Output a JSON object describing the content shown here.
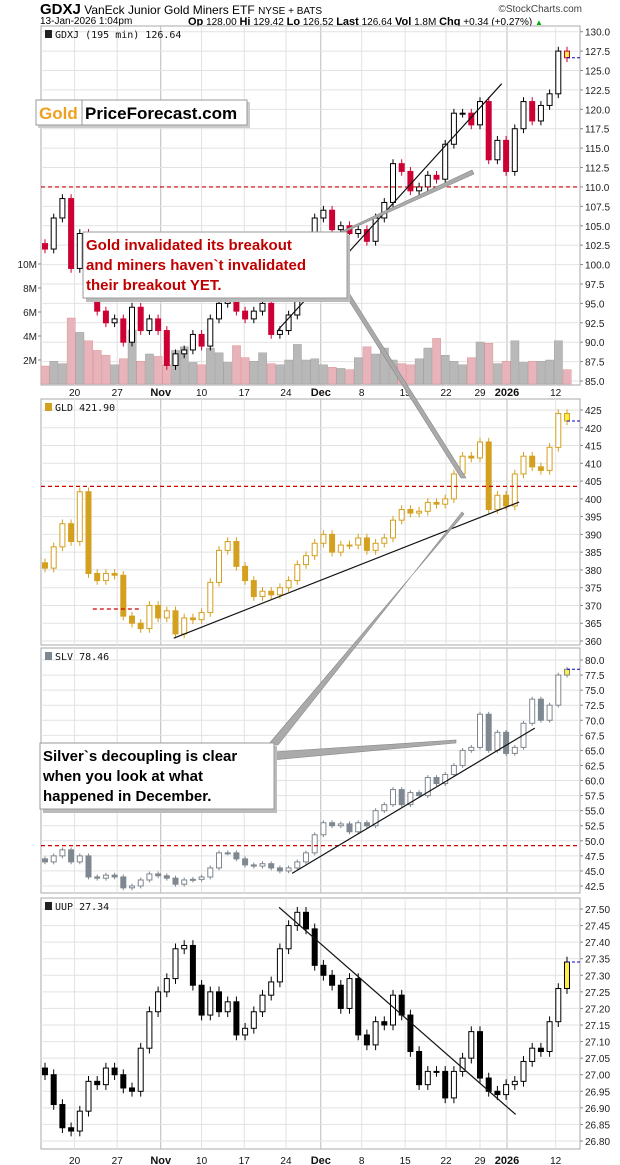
{
  "header": {
    "symbol": "GDXJ",
    "name": "VanEck Junior Gold Miners ETF",
    "exchange": "NYSE + BATS",
    "credit": "©StockCharts.com",
    "datetime": "13-Jan-2026 1:04pm",
    "op_label": "Op",
    "op": "128.00",
    "hi_label": "Hi",
    "hi": "129.42",
    "lo_label": "Lo",
    "lo": "126.52",
    "last_label": "Last",
    "last": "126.64",
    "vol_label": "Vol",
    "vol": "1.8M",
    "chg_label": "Chg",
    "chg": "+0.34 (+0.27%)",
    "chg_arrow": "▲"
  },
  "logo": {
    "gold": "Gold",
    "site": "PriceForecast.com"
  },
  "annotations": {
    "gold_note": [
      "Gold invalidated its breakout",
      "and miners haven`t invalidated",
      "their breakout YET."
    ],
    "silver_note": [
      "Silver`s decoupling is clear",
      "when you look at what",
      "happened in December."
    ]
  },
  "colors": {
    "up_down_red": "#cc0033",
    "gold": "#d4a020",
    "silver": "#7f8890",
    "dollar": "#000000",
    "level": "#cc0000",
    "last_marker": "#0000cc"
  },
  "chart_data": {
    "type": "candlestick",
    "x_labels": [
      {
        "text": "20",
        "bar": 3.4
      },
      {
        "text": "27",
        "bar": 8.3
      },
      {
        "text": "Nov",
        "bar": 13.3,
        "bold": true
      },
      {
        "text": "10",
        "bar": 18
      },
      {
        "text": "17",
        "bar": 22.9
      },
      {
        "text": "24",
        "bar": 27.7
      },
      {
        "text": "Dec",
        "bar": 31.7,
        "bold": true
      },
      {
        "text": "8",
        "bar": 36.4
      },
      {
        "text": "15",
        "bar": 41.4
      },
      {
        "text": "22",
        "bar": 46.1
      },
      {
        "text": "29",
        "bar": 50
      },
      {
        "text": "2026",
        "bar": 53.1,
        "bold": true
      },
      {
        "text": "12",
        "bar": 58.7
      }
    ],
    "panels": [
      {
        "id": "gdxj",
        "label": "GDXJ (195 min) 126.64",
        "color": "#cc0033",
        "up_color": "#000000",
        "ylim": [
          85,
          130
        ],
        "yticks": [
          "130.0",
          "127.5",
          "125.0",
          "122.5",
          "120.0",
          "117.5",
          "115.0",
          "112.5",
          "110.0",
          "107.5",
          "105.0",
          "102.5",
          "100.0",
          "97.5",
          "95.0",
          "92.5",
          "90.0",
          "87.5",
          "85.0"
        ],
        "closes": [
          102,
          106,
          108.5,
          99.5,
          104,
          96,
          94,
          92.5,
          93,
          90,
          94.5,
          91.5,
          93,
          91.5,
          87,
          88.5,
          89,
          91,
          89.5,
          93,
          95,
          97,
          94,
          93,
          94,
          95,
          91,
          91.5,
          93.5,
          97,
          102.5,
          106,
          107,
          104.5,
          105,
          104,
          104.5,
          103,
          106,
          108,
          113,
          112,
          109.5,
          110,
          111.5,
          111,
          115.5,
          119.5,
          119.5,
          118,
          121,
          113.5,
          116,
          112,
          117.5,
          121,
          118.5,
          120.5,
          122,
          127.5,
          126.64
        ],
        "volume_m": [
          1.5,
          1.9,
          1.7,
          5.5,
          4.3,
          3.6,
          2.8,
          2.4,
          1.6,
          2.1,
          4.5,
          1.9,
          2.5,
          2.3,
          1.6,
          2.8,
          3.1,
          1.8,
          1.6,
          3.0,
          2.6,
          1.8,
          3.2,
          2.2,
          1.9,
          2.6,
          1.7,
          1.6,
          2.0,
          3.3,
          2.0,
          2.1,
          1.6,
          1.4,
          1.3,
          1.2,
          2.2,
          3.1,
          2.5,
          3.0,
          2.0,
          1.7,
          1.6,
          2.1,
          3.0,
          3.8,
          2.4,
          1.9,
          1.6,
          2.2,
          3.5,
          3.4,
          1.7,
          1.9,
          3.6,
          1.8,
          1.9,
          1.9,
          2.0,
          3.6,
          1.2
        ],
        "volume_ticks": [
          "2M",
          "4M",
          "6M",
          "8M",
          "10M"
        ],
        "levels": [
          {
            "value": 110,
            "style": "red-dashed"
          }
        ],
        "trendlines": [
          {
            "from": [
              26.8,
              91.6
            ],
            "to": [
              52.5,
              123.3
            ]
          }
        ]
      },
      {
        "id": "gld",
        "label": "GLD 421.90",
        "color": "#d4a020",
        "up_color": "#d4a020",
        "ylim": [
          360,
          425
        ],
        "yticks": [
          "425",
          "420",
          "415",
          "410",
          "405",
          "400",
          "395",
          "390",
          "385",
          "380",
          "375",
          "370",
          "365",
          "360"
        ],
        "closes": [
          380.5,
          386.5,
          393,
          388,
          402,
          379,
          377,
          379,
          378.5,
          367,
          365,
          363.5,
          370,
          366.5,
          368.5,
          362,
          366.5,
          366,
          368,
          376.5,
          385.5,
          388,
          381,
          377,
          372.5,
          374,
          373,
          375,
          377,
          381.5,
          384,
          387.5,
          390,
          385,
          387,
          387,
          389,
          385.5,
          387.5,
          389,
          394,
          397,
          396,
          396.5,
          399,
          398.5,
          400,
          407,
          412,
          411.5,
          416,
          397,
          401,
          398,
          407,
          412,
          409,
          408,
          414.5,
          424,
          421.9
        ],
        "levels": [
          {
            "value": 403.5,
            "style": "red-dashed"
          },
          {
            "value": 369,
            "style": "red-dashed",
            "from_bar": 5.5,
            "to_bar": 11
          }
        ],
        "trendlines": [
          {
            "from": [
              14.8,
              360.8
            ],
            "to": [
              54.5,
              399.1
            ]
          }
        ]
      },
      {
        "id": "slv",
        "label": "SLV 78.46",
        "color": "#7f8890",
        "up_color": "#7f8890",
        "ylim": [
          42.5,
          80
        ],
        "yticks": [
          "80.0",
          "77.5",
          "75.0",
          "72.5",
          "70.0",
          "67.5",
          "65.0",
          "62.5",
          "60.0",
          "57.5",
          "55.0",
          "52.5",
          "50.0",
          "47.5",
          "45.0",
          "42.5"
        ],
        "closes": [
          46.5,
          47.5,
          48.5,
          46.5,
          47.5,
          44,
          43.8,
          44.3,
          44,
          42.2,
          42.5,
          43.5,
          44.5,
          44.2,
          43.8,
          42.8,
          43.5,
          43.6,
          44,
          45.5,
          48,
          48,
          47,
          46,
          45.8,
          46.2,
          45.5,
          45,
          45.5,
          46.5,
          48,
          51,
          53,
          52.5,
          52.8,
          51.5,
          53,
          52.5,
          55,
          56,
          58.5,
          56,
          58,
          57.5,
          60.5,
          59.5,
          61,
          62.5,
          65,
          65.5,
          71,
          65,
          68,
          64.5,
          65.5,
          69.5,
          73.5,
          70,
          72.5,
          77.5,
          78.46
        ],
        "levels": [
          {
            "value": 49.2,
            "style": "red-dashed"
          }
        ],
        "trendlines": [
          {
            "from": [
              28.4,
              44.6
            ],
            "to": [
              56.3,
              68.7
            ]
          }
        ]
      },
      {
        "id": "uup",
        "label": "UUP 27.34",
        "color": "#000000",
        "up_color": "#000000",
        "ylim": [
          26.8,
          27.5
        ],
        "yticks": [
          "27.50",
          "27.45",
          "27.40",
          "27.35",
          "27.30",
          "27.25",
          "27.20",
          "27.15",
          "27.10",
          "27.05",
          "27.00",
          "26.95",
          "26.90",
          "26.85",
          "26.80"
        ],
        "closes": [
          27.0,
          26.91,
          26.84,
          26.83,
          26.89,
          26.98,
          26.97,
          27.02,
          27.0,
          26.96,
          26.95,
          27.08,
          27.19,
          27.25,
          27.29,
          27.38,
          27.39,
          27.27,
          27.18,
          27.25,
          27.19,
          27.22,
          27.12,
          27.14,
          27.19,
          27.24,
          27.28,
          27.38,
          27.45,
          27.49,
          27.44,
          27.33,
          27.3,
          27.27,
          27.2,
          27.29,
          27.12,
          27.09,
          27.16,
          27.15,
          27.24,
          27.18,
          27.07,
          26.97,
          27.01,
          27.01,
          26.93,
          27.01,
          27.05,
          27.13,
          26.99,
          26.95,
          26.94,
          26.97,
          26.98,
          27.04,
          27.08,
          27.07,
          27.16,
          27.26,
          27.34
        ],
        "levels": [],
        "trendlines": [
          {
            "from": [
              26.9,
              27.505
            ],
            "to": [
              54.1,
              26.88
            ]
          }
        ]
      }
    ]
  }
}
